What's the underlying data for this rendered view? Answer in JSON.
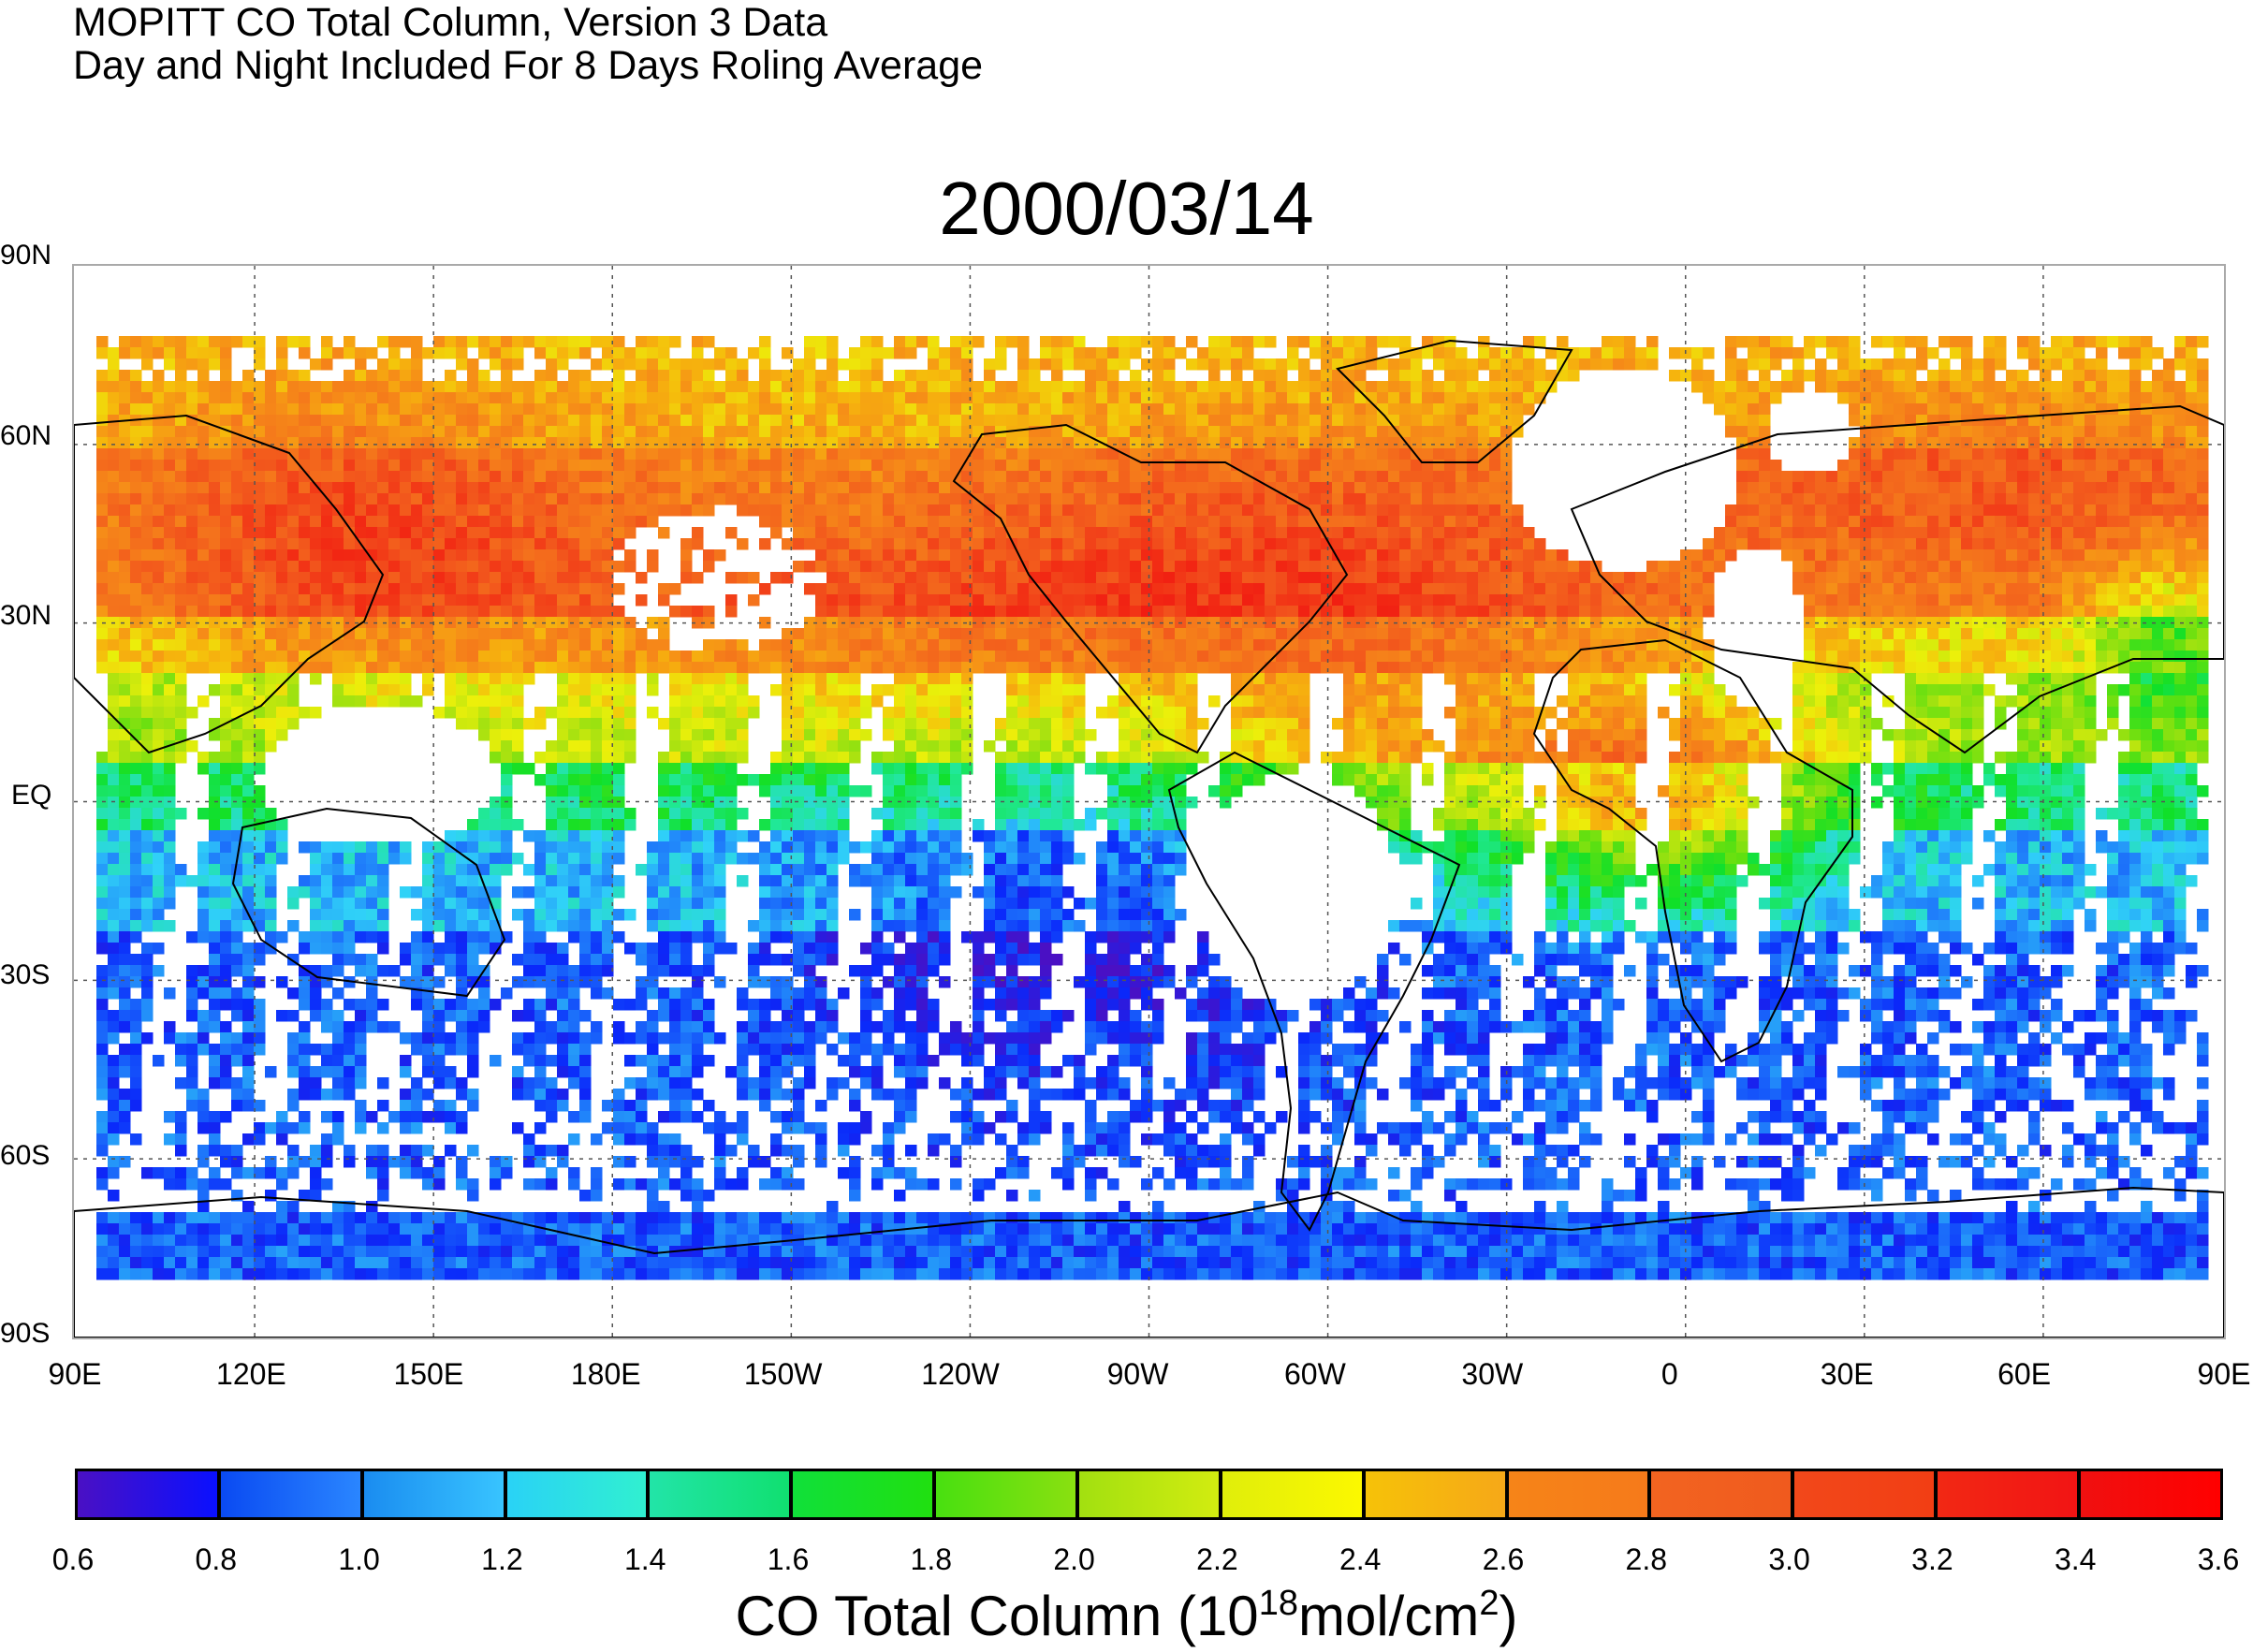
{
  "header": {
    "line1": "MOPITT CO Total Column, Version 3 Data",
    "line2": "Day and Night Included For 8 Days Roling Average"
  },
  "map": {
    "date": "2000/03/14",
    "lat_labels": [
      "90N",
      "60N",
      "30N",
      "EQ",
      "30S",
      "60S",
      "90S"
    ],
    "lon_labels": [
      "90E",
      "120E",
      "150E",
      "180E",
      "150W",
      "120W",
      "90W",
      "60W",
      "30W",
      "0",
      "30E",
      "60E",
      "90E"
    ],
    "grid": "dotted",
    "missing_data_color": "#ffffff",
    "coastline_color": "#000000"
  },
  "colorbar": {
    "ticks": [
      "0.6",
      "0.8",
      "1.0",
      "1.2",
      "1.4",
      "1.6",
      "1.8",
      "2.0",
      "2.2",
      "2.4",
      "2.6",
      "2.8",
      "3.0",
      "3.2",
      "3.4",
      "3.6"
    ],
    "segments": [
      [
        "#4a10c4",
        "#0a10ff"
      ],
      [
        "#0a4af2",
        "#2a86ff"
      ],
      [
        "#1a8cf0",
        "#38c4ff"
      ],
      [
        "#2ad2f6",
        "#30f0d0"
      ],
      [
        "#22e4a8",
        "#10e070"
      ],
      [
        "#10e03a",
        "#20e010"
      ],
      [
        "#48e010",
        "#8ae010"
      ],
      [
        "#a2e010",
        "#d2ec10"
      ],
      [
        "#e0ee0a",
        "#fcf800"
      ],
      [
        "#f6c208",
        "#f6a818"
      ],
      [
        "#f68418",
        "#f67a1a"
      ],
      [
        "#f26420",
        "#f05a1e"
      ],
      [
        "#f2481a",
        "#f23e14"
      ],
      [
        "#f22814",
        "#f21414"
      ],
      [
        "#f01010",
        "#ff0000"
      ]
    ],
    "title_main": "CO Total Column (10",
    "title_exp1": "18",
    "title_unit": "mol/cm",
    "title_exp2": "2",
    "title_close": ")"
  }
}
